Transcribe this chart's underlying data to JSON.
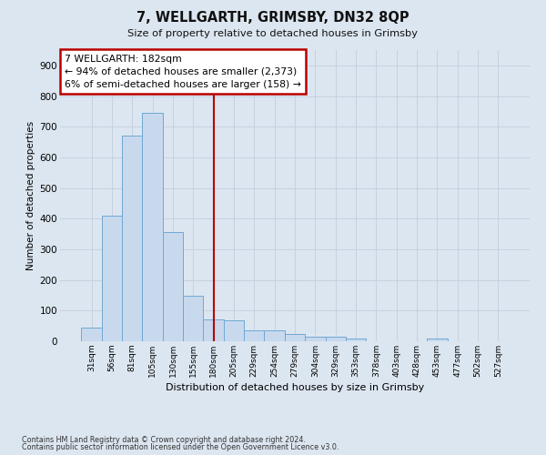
{
  "title": "7, WELLGARTH, GRIMSBY, DN32 8QP",
  "subtitle": "Size of property relative to detached houses in Grimsby",
  "xlabel": "Distribution of detached houses by size in Grimsby",
  "ylabel": "Number of detached properties",
  "categories": [
    "31sqm",
    "56sqm",
    "81sqm",
    "105sqm",
    "130sqm",
    "155sqm",
    "180sqm",
    "205sqm",
    "229sqm",
    "254sqm",
    "279sqm",
    "304sqm",
    "329sqm",
    "353sqm",
    "378sqm",
    "403sqm",
    "428sqm",
    "453sqm",
    "477sqm",
    "502sqm",
    "527sqm"
  ],
  "values": [
    45,
    410,
    670,
    745,
    355,
    148,
    70,
    68,
    35,
    35,
    25,
    15,
    15,
    8,
    0,
    0,
    0,
    8,
    0,
    0,
    0
  ],
  "bar_color": "#c8d9ee",
  "bar_edge_color": "#6fa8d4",
  "vline_color": "#bb0000",
  "annotation_line1": "7 WELLGARTH: 182sqm",
  "annotation_line2": "← 94% of detached houses are smaller (2,373)",
  "annotation_line3": "6% of semi-detached houses are larger (158) →",
  "ylim": [
    0,
    950
  ],
  "yticks": [
    0,
    100,
    200,
    300,
    400,
    500,
    600,
    700,
    800,
    900
  ],
  "grid_color": "#c8d0e0",
  "bg_color": "#dce6f0",
  "footnote1": "Contains HM Land Registry data © Crown copyright and database right 2024.",
  "footnote2": "Contains public sector information licensed under the Open Government Licence v3.0.",
  "vline_pos": 6.0
}
